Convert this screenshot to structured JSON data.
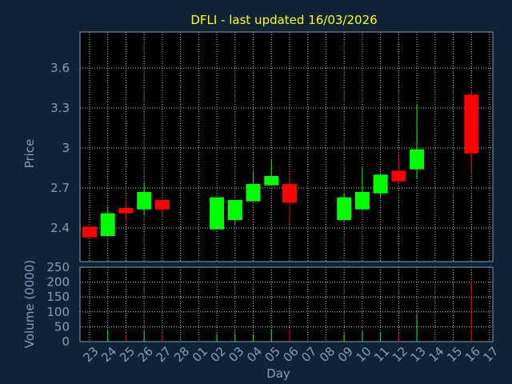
{
  "chart_data": [
    {
      "type": "candlestick",
      "title": "DFLI - last updated 16/03/2026",
      "ylabel": "Price",
      "ylim": [
        2.3,
        3.85
      ],
      "yticks": [
        "2.4",
        "2.7",
        "3",
        "3.3",
        "3.6"
      ],
      "grid": true,
      "colors": {
        "up": "#00ff00",
        "down": "#ff0000"
      },
      "candles": [
        {
          "day": "23",
          "open": 2.41,
          "high": 2.42,
          "low": 2.33,
          "close": 2.33
        },
        {
          "day": "24",
          "open": 2.34,
          "high": 2.56,
          "low": 2.34,
          "close": 2.51
        },
        {
          "day": "25",
          "open": 2.55,
          "high": 2.61,
          "low": 2.44,
          "close": 2.51
        },
        {
          "day": "26",
          "open": 2.54,
          "high": 2.74,
          "low": 2.5,
          "close": 2.67
        },
        {
          "day": "27",
          "open": 2.61,
          "high": 2.61,
          "low": 2.47,
          "close": 2.54
        },
        {
          "day": "02",
          "open": 2.39,
          "high": 2.63,
          "low": 2.39,
          "close": 2.63
        },
        {
          "day": "03",
          "open": 2.46,
          "high": 2.61,
          "low": 2.43,
          "close": 2.61
        },
        {
          "day": "04",
          "open": 2.6,
          "high": 2.82,
          "low": 2.6,
          "close": 2.73
        },
        {
          "day": "05",
          "open": 2.72,
          "high": 2.91,
          "low": 2.72,
          "close": 2.79
        },
        {
          "day": "06",
          "open": 2.73,
          "high": 2.8,
          "low": 2.43,
          "close": 2.59
        },
        {
          "day": "09",
          "open": 2.46,
          "high": 2.66,
          "low": 2.45,
          "close": 2.63
        },
        {
          "day": "10",
          "open": 2.54,
          "high": 2.85,
          "low": 2.53,
          "close": 2.67
        },
        {
          "day": "11",
          "open": 2.66,
          "high": 2.81,
          "low": 2.62,
          "close": 2.8
        },
        {
          "day": "12",
          "open": 2.83,
          "high": 2.95,
          "low": 2.74,
          "close": 2.75
        },
        {
          "day": "13",
          "open": 2.84,
          "high": 3.33,
          "low": 2.77,
          "close": 2.99
        },
        {
          "day": "16",
          "open": 3.4,
          "high": 3.44,
          "low": 2.8,
          "close": 2.96
        }
      ]
    },
    {
      "type": "bar",
      "xlabel": "Day",
      "ylabel": "Volume (0000)",
      "ylim": [
        0,
        250
      ],
      "yticks": [
        "0",
        "50",
        "100",
        "150",
        "200",
        "250"
      ],
      "grid": true,
      "categories": [
        "23",
        "24",
        "25",
        "26",
        "27",
        "02",
        "03",
        "04",
        "05",
        "06",
        "09",
        "10",
        "11",
        "12",
        "13",
        "16"
      ],
      "values": [
        4,
        38,
        25,
        36,
        25,
        26,
        27,
        26,
        43,
        43,
        26,
        35,
        30,
        30,
        92,
        205
      ],
      "xticks": [
        "23",
        "24",
        "25",
        "26",
        "27",
        "28",
        "01",
        "02",
        "03",
        "04",
        "05",
        "06",
        "07",
        "08",
        "09",
        "10",
        "11",
        "12",
        "13",
        "14",
        "15",
        "16",
        "17"
      ]
    }
  ]
}
